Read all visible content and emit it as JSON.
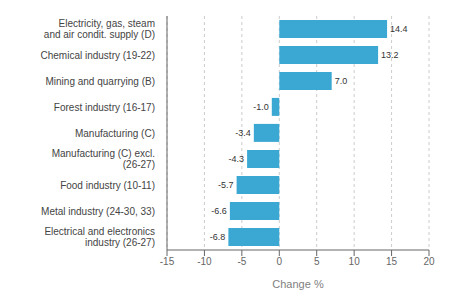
{
  "chart_data": {
    "type": "bar",
    "orientation": "horizontal",
    "categories": [
      "Electrical and electronics industry (26-27)",
      "Metal industry (24-30, 33)",
      "Food industry (10-11)",
      "Manufacturing (C) excl. (26-27)",
      "Manufacturing (C)",
      "Forest industry (16-17)",
      "Mining and quarrying (B)",
      "Chemical industry (19-22)",
      "Electricity, gas, steam and air condit. supply (D)"
    ],
    "values": [
      -6.8,
      -6.6,
      -5.7,
      -4.3,
      -3.4,
      -1.0,
      7.0,
      13.2,
      14.4
    ],
    "value_labels": [
      "-6.8",
      "-6.6",
      "-5.7",
      "-4.3",
      "-3.4",
      "-1.0",
      "7.0",
      "13.2",
      "14.4"
    ],
    "data_labels": true,
    "color": "#3ba8d4",
    "xlabel": "Change %",
    "xlim": [
      -15,
      20
    ],
    "xticks": [
      -15,
      -10,
      -5,
      0,
      5,
      10,
      15,
      20
    ],
    "grid": true
  }
}
